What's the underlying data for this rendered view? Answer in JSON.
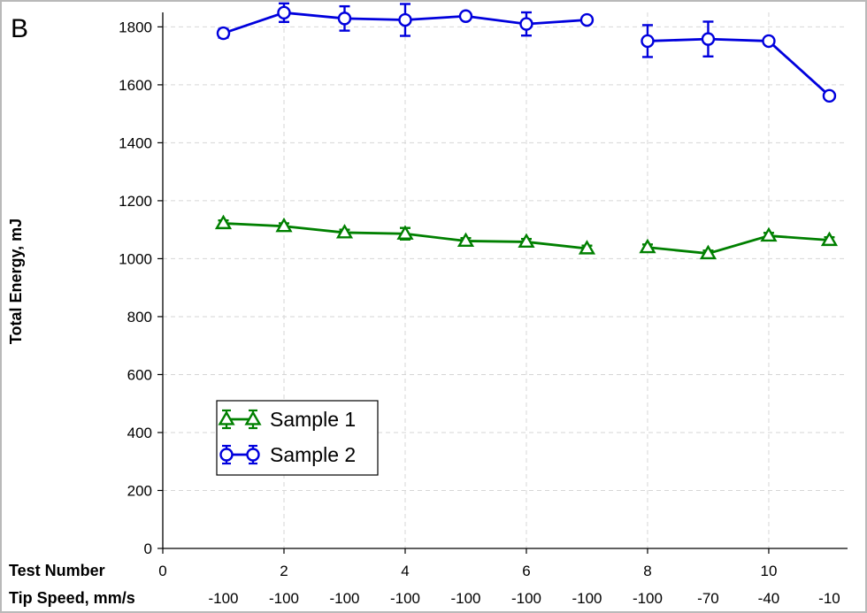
{
  "panel_label": "B",
  "colors": {
    "sample1": "#008000",
    "sample2": "#0000dd",
    "grid": "#d6d6d6",
    "axis": "#000000"
  },
  "chart_data": {
    "type": "line",
    "title": "",
    "ylabel": "Total Energy, mJ",
    "xlabel_rows": [
      "Test Number",
      "Tip Speed, mm/s"
    ],
    "xlim": [
      0,
      11.3
    ],
    "ylim": [
      0,
      1850
    ],
    "x_ticks": [
      0,
      2,
      4,
      6,
      8,
      10
    ],
    "y_ticks": [
      0,
      200,
      400,
      600,
      800,
      1000,
      1200,
      1400,
      1600,
      1800
    ],
    "tip_speed_x": [
      1,
      2,
      3,
      4,
      5,
      6,
      7,
      8,
      9,
      10,
      11
    ],
    "tip_speed_labels": [
      "-100",
      "-100",
      "-100",
      "-100",
      "-100",
      "-100",
      "-100",
      "-100",
      "-70",
      "-40",
      "-10"
    ],
    "grid": true,
    "legend_position": "bottom-left",
    "series": [
      {
        "name": "Sample 1",
        "marker": "triangle",
        "color": "#008000",
        "segments": [
          [
            {
              "x": 1,
              "y": 1122,
              "err": 10
            },
            {
              "x": 2,
              "y": 1112,
              "err": 10
            },
            {
              "x": 3,
              "y": 1090,
              "err": 10
            },
            {
              "x": 4,
              "y": 1086,
              "err": 20
            },
            {
              "x": 5,
              "y": 1061,
              "err": 10
            },
            {
              "x": 6,
              "y": 1058,
              "err": 10
            },
            {
              "x": 7,
              "y": 1035,
              "err": 10
            }
          ],
          [
            {
              "x": 8,
              "y": 1039,
              "err": 10
            },
            {
              "x": 9,
              "y": 1018,
              "err": 10
            },
            {
              "x": 10,
              "y": 1079,
              "err": 10
            },
            {
              "x": 11,
              "y": 1064,
              "err": 10
            }
          ]
        ]
      },
      {
        "name": "Sample 2",
        "marker": "circle",
        "color": "#0000dd",
        "segments": [
          [
            {
              "x": 1,
              "y": 1778,
              "err": 15
            },
            {
              "x": 2,
              "y": 1849,
              "err": 32
            },
            {
              "x": 3,
              "y": 1829,
              "err": 42
            },
            {
              "x": 4,
              "y": 1824,
              "err": 55
            },
            {
              "x": 5,
              "y": 1837,
              "err": 10
            },
            {
              "x": 6,
              "y": 1810,
              "err": 40
            },
            {
              "x": 7,
              "y": 1824,
              "err": 8
            }
          ],
          [
            {
              "x": 8,
              "y": 1751,
              "err": 55
            },
            {
              "x": 9,
              "y": 1758,
              "err": 60
            },
            {
              "x": 10,
              "y": 1751,
              "err": 10
            },
            {
              "x": 11,
              "y": 1562,
              "err": 8
            }
          ]
        ]
      }
    ]
  }
}
